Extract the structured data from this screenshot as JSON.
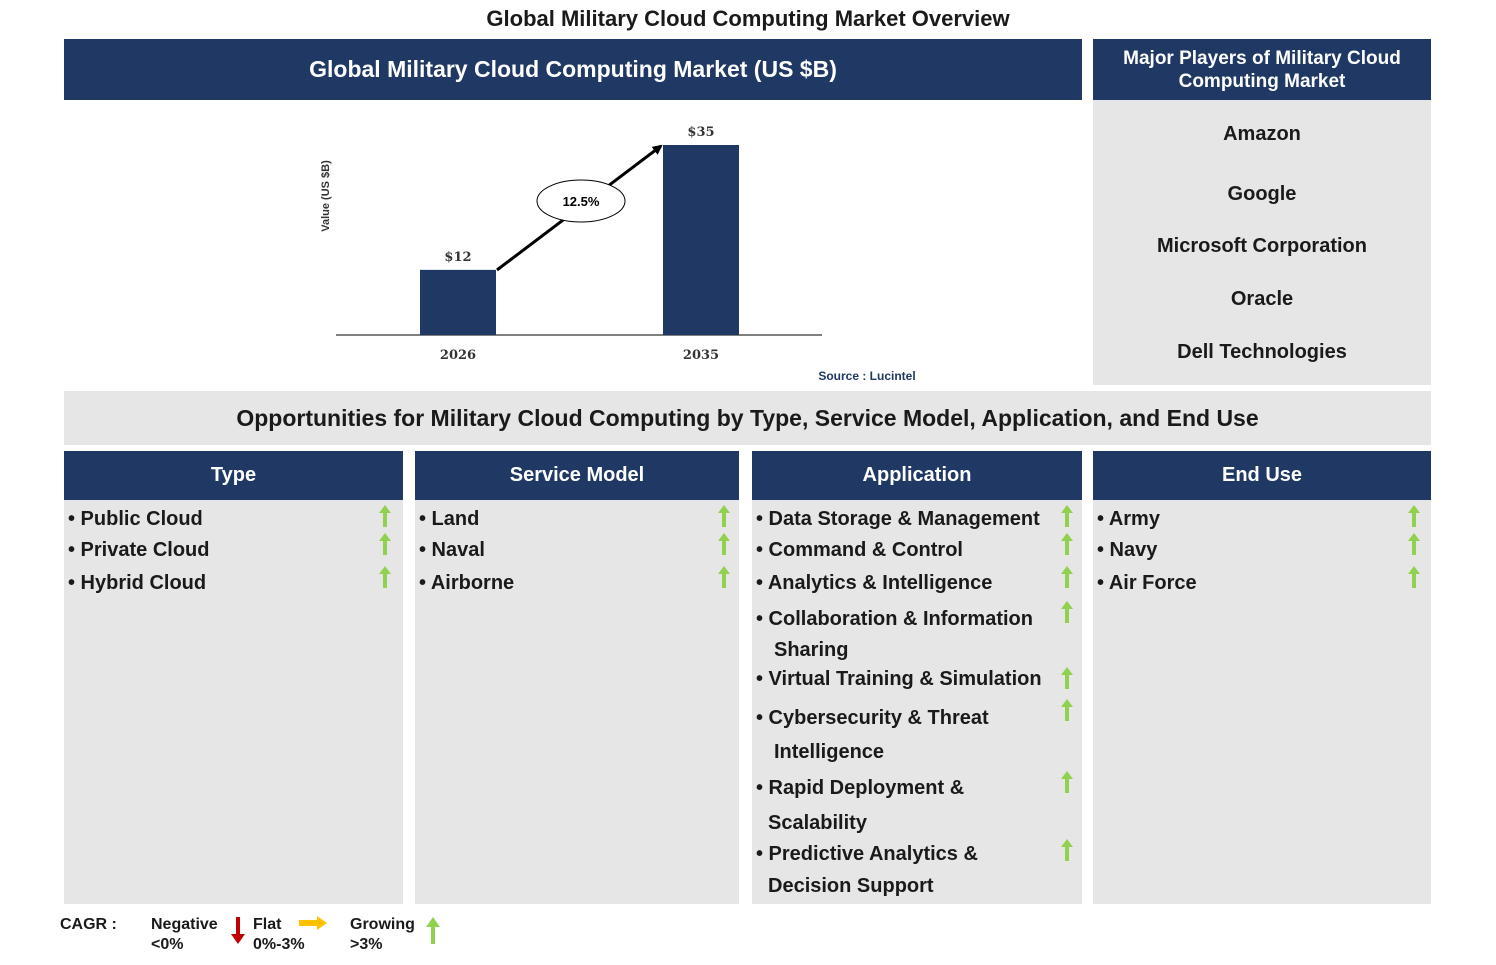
{
  "page_title": "Global Military Cloud Computing Market Overview",
  "chart_header": "Global Military Cloud Computing Market (US $B)",
  "chart_data": {
    "type": "bar",
    "categories": [
      "2026",
      "2035"
    ],
    "values": [
      12,
      35
    ],
    "value_labels": [
      "$12",
      "$35"
    ],
    "ylabel": "Value (US $B)",
    "ylim": [
      0,
      35
    ],
    "cagr_label": "12.5%",
    "source": "Source : Lucintel",
    "bar_color": "#1f3864"
  },
  "players": {
    "title": "Major Players of Military Cloud Computing Market",
    "items": [
      "Amazon",
      "Google",
      "Microsoft Corporation",
      "Oracle",
      "Dell Technologies"
    ]
  },
  "opportunities_title": "Opportunities for Military Cloud Computing by Type, Service Model, Application, and End Use",
  "columns": {
    "type": {
      "title": "Type",
      "items": [
        {
          "lines": [
            "• Public Cloud"
          ],
          "trend": "growing"
        },
        {
          "lines": [
            "• Private Cloud"
          ],
          "trend": "growing"
        },
        {
          "lines": [
            "• Hybrid Cloud"
          ],
          "trend": "growing"
        }
      ]
    },
    "service_model": {
      "title": "Service Model",
      "items": [
        {
          "lines": [
            "• Land"
          ],
          "trend": "growing"
        },
        {
          "lines": [
            "• Naval"
          ],
          "trend": "growing"
        },
        {
          "lines": [
            "• Airborne"
          ],
          "trend": "growing"
        }
      ]
    },
    "application": {
      "title": "Application",
      "items": [
        {
          "lines": [
            "• Data Storage & Management"
          ],
          "trend": "growing"
        },
        {
          "lines": [
            "• Command & Control"
          ],
          "trend": "growing"
        },
        {
          "lines": [
            "• Analytics & Intelligence"
          ],
          "trend": "growing"
        },
        {
          "lines": [
            "• Collaboration & Information",
            "Sharing"
          ],
          "trend": "growing"
        },
        {
          "lines": [
            "• Virtual Training & Simulation"
          ],
          "trend": "growing"
        },
        {
          "lines": [
            "• Cybersecurity & Threat",
            "Intelligence"
          ],
          "trend": "growing"
        },
        {
          "lines": [
            "• Rapid Deployment &",
            "Scalability"
          ],
          "trend": "growing"
        },
        {
          "lines": [
            "• Predictive Analytics &",
            "Decision Support"
          ],
          "trend": "growing"
        }
      ]
    },
    "end_use": {
      "title": "End Use",
      "items": [
        {
          "lines": [
            "• Army"
          ],
          "trend": "growing"
        },
        {
          "lines": [
            "• Navy"
          ],
          "trend": "growing"
        },
        {
          "lines": [
            "• Air Force"
          ],
          "trend": "growing"
        }
      ]
    }
  },
  "legend": {
    "label": "CAGR :",
    "negative": {
      "name": "Negative",
      "range": "<0%",
      "icon": "down-arrow-red",
      "color": "#c00000"
    },
    "flat": {
      "name": "Flat",
      "range": "0%-3%",
      "icon": "right-arrow-yellow",
      "color": "#ffc000"
    },
    "growing": {
      "name": "Growing",
      "range": ">3%",
      "icon": "up-arrow-green",
      "color": "#92d050"
    }
  }
}
